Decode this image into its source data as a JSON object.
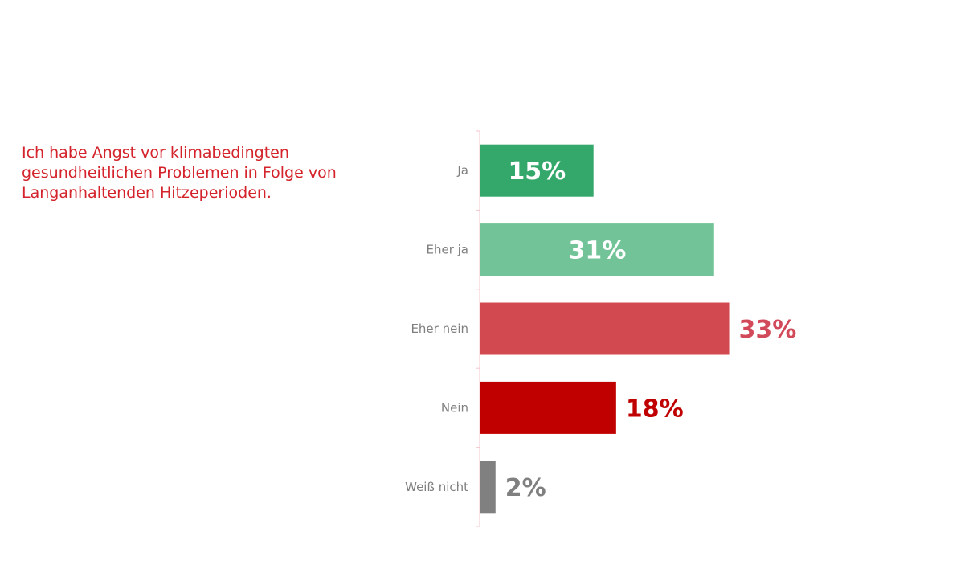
{
  "question": {
    "lines": [
      "Ich habe Angst vor klimabedingten",
      "gesundheitlichen Problemen in Folge von",
      "Langanhaltenden Hitzeperioden."
    ]
  },
  "chart_data": {
    "type": "bar",
    "orientation": "horizontal",
    "title": "",
    "xlabel": "",
    "ylabel": "",
    "categories": [
      "Ja",
      "Eher ja",
      "Eher nein",
      "Nein",
      "Weiß nicht"
    ],
    "values": [
      15,
      31,
      33,
      18,
      2
    ],
    "value_labels": [
      "15%",
      "31%",
      "33%",
      "18%",
      "2%"
    ],
    "colors": [
      "#34a86a",
      "#72c498",
      "#d24a4f",
      "#c00000",
      "#808080"
    ],
    "label_colors": [
      "#ffffff",
      "#ffffff",
      "#d24a5a",
      "#c00000",
      "#808080"
    ],
    "label_inside": [
      true,
      true,
      false,
      false,
      false
    ],
    "axis_color": "#f4c6cc",
    "xlim": [
      0,
      100
    ],
    "grid": false,
    "legend": "none"
  }
}
